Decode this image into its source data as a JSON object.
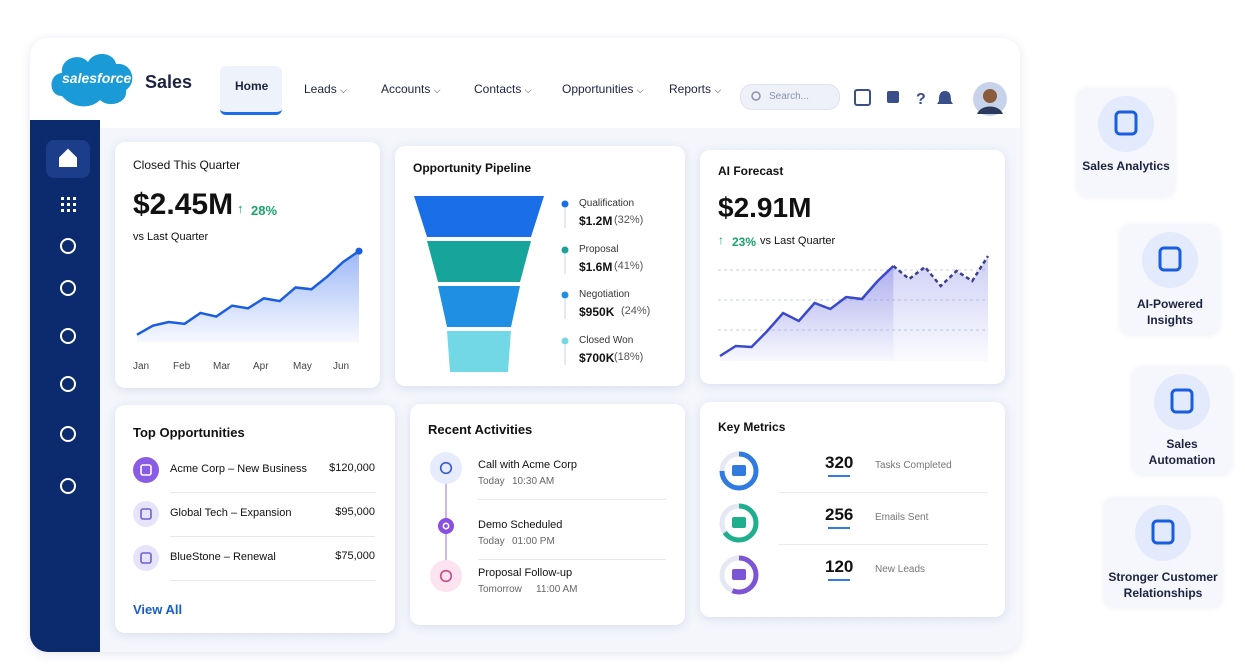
{
  "header": {
    "logo": "salesforce",
    "app": "Sales",
    "nav": [
      "Home",
      "Leads",
      "Accounts",
      "Contacts",
      "Opportunities",
      "Reports"
    ],
    "search": "Search..."
  },
  "closed_quarter": {
    "title": "Closed This Quarter",
    "value": "$2.45M",
    "change": "28%",
    "comparison": "vs Last Quarter",
    "months": [
      "Jan",
      "Feb",
      "Mar",
      "Apr",
      "May",
      "Jun"
    ],
    "trend": [
      8,
      18,
      22,
      20,
      32,
      28,
      40,
      37,
      48,
      45,
      60,
      58,
      72,
      88,
      100
    ],
    "ylim": [
      0,
      110
    ]
  },
  "pipeline": {
    "title": "Opportunity Pipeline",
    "stages": [
      {
        "name": "Qualification",
        "amount": "$1.2M",
        "share": "(32%)"
      },
      {
        "name": "Proposal",
        "amount": "$1.6M",
        "share": "(41%)"
      },
      {
        "name": "Negotiation",
        "amount": "$950K",
        "share": "(24%)"
      },
      {
        "name": "Closed Won",
        "amount": "$700K",
        "share": "(18%)"
      }
    ]
  },
  "ai_forecast": {
    "title": "AI Forecast",
    "value": "$2.91M",
    "change": "23%",
    "comparison": "vs Last Quarter",
    "actual": [
      5,
      15,
      14,
      30,
      48,
      40,
      58,
      52,
      64,
      62,
      80,
      95,
      null,
      null,
      null,
      null,
      null,
      null
    ],
    "forecast": [
      null,
      null,
      null,
      null,
      null,
      null,
      null,
      null,
      null,
      null,
      null,
      95,
      82,
      94,
      75,
      90,
      80,
      105
    ],
    "ylim": [
      0,
      115
    ]
  },
  "top_opportunities": {
    "title": "Top Opportunities",
    "rows": [
      {
        "name": "Acme Corp – New Business",
        "amount": "$120,000"
      },
      {
        "name": "Global Tech – Expansion",
        "amount": "$95,000"
      },
      {
        "name": "BlueStone – Renewal",
        "amount": "$75,000"
      }
    ],
    "link": "View All"
  },
  "recent_activities": {
    "title": "Recent Activities",
    "items": [
      {
        "title": "Call with Acme Corp",
        "day": "Today",
        "time": "10:30 AM"
      },
      {
        "title": "Demo Scheduled",
        "day": "Today",
        "time": "01:00 PM"
      },
      {
        "title": "Proposal Follow-up",
        "day": "Tomorrow",
        "time": "11:00 AM"
      }
    ]
  },
  "key_metrics": {
    "title": "Key Metrics",
    "items": [
      {
        "value": "320",
        "label": "Tasks Completed"
      },
      {
        "value": "256",
        "label": "Emails Sent"
      },
      {
        "value": "120",
        "label": "New Leads"
      }
    ]
  },
  "features": [
    "Sales Analytics",
    "AI-Powered Insights",
    "Sales Automation",
    "Stronger Customer Relationships"
  ]
}
